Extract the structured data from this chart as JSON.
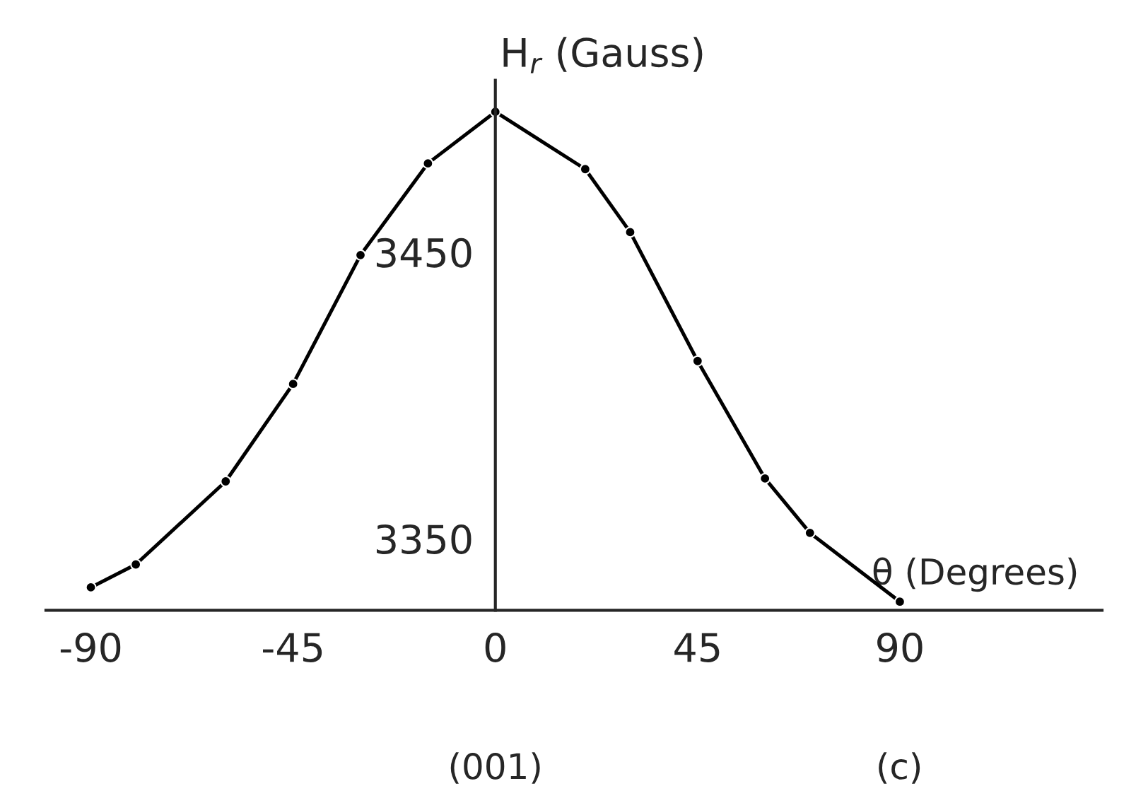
{
  "chart_data": {
    "type": "line",
    "xlabel": "θ (Degrees)",
    "ylabel": "H$_{r}$ (Gauss)",
    "x": [
      -90,
      -80,
      -60,
      -45,
      -30,
      -15,
      0,
      20,
      30,
      45,
      60,
      70,
      90
    ],
    "series": [
      {
        "color": "#000000",
        "values": [
          3333,
          3341,
          3370,
          3404,
          3449,
          3481,
          3499,
          3479,
          3457,
          3412,
          3371,
          3352,
          3328
        ]
      }
    ],
    "xlim": [
      -100,
      135
    ],
    "ylim": [
      3325,
      3510
    ],
    "xticks": [
      -90,
      -45,
      0,
      45,
      90
    ],
    "yticks": [
      3350,
      3450
    ],
    "marker": "circle",
    "line_style": "solid",
    "grid": false,
    "legend": false,
    "annotations": [
      "(001)",
      "(c)"
    ]
  }
}
